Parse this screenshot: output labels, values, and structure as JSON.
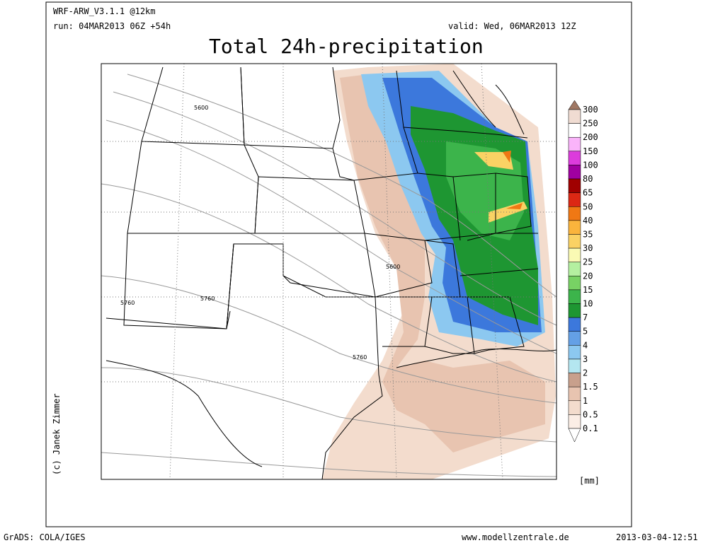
{
  "header": {
    "model": "WRF-ARW_V3.1.1 @12km",
    "run": "run: 04MAR2013 06Z +54h",
    "valid": "valid: Wed, 06MAR2013 12Z",
    "title": "Total 24h-precipitation"
  },
  "map": {
    "contour_labels": [
      "5600",
      "5600",
      "5760",
      "5760",
      "5760"
    ],
    "copyright": "(c) Janek Zimmer"
  },
  "legend": {
    "levels": [
      "300",
      "250",
      "200",
      "150",
      "100",
      "80",
      "65",
      "50",
      "40",
      "35",
      "30",
      "25",
      "20",
      "15",
      "10",
      "7",
      "5",
      "4",
      "3",
      "2",
      "1.5",
      "1",
      "0.5",
      "0.1"
    ],
    "colors": [
      "#a07864",
      "#f0dcd2",
      "#ffffff",
      "#fab4fa",
      "#dc3cdc",
      "#a000a0",
      "#a00000",
      "#dc2814",
      "#f07814",
      "#fab43c",
      "#fad264",
      "#fafab4",
      "#b4f0a0",
      "#78d264",
      "#3cb44b",
      "#1e9632",
      "#3c78dc",
      "#64a0e6",
      "#8cc8f0",
      "#b4e6f0",
      "#c8a08c",
      "#e8c4b0",
      "#f3dccd",
      "#fbeee6",
      "#ffffff"
    ],
    "unit": "[mm]"
  },
  "footer": {
    "software": "GrADS: COLA/IGES",
    "website": "www.modellzentrale.de",
    "timestamp": "2013-03-04-12:51"
  }
}
